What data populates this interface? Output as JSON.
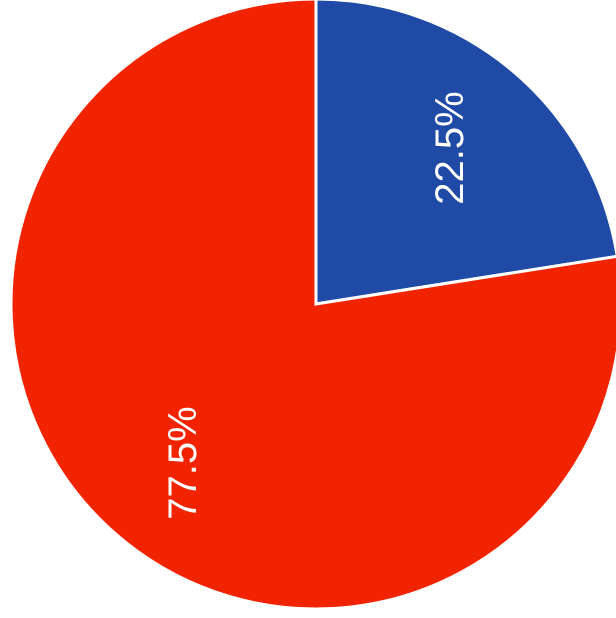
{
  "chart_data": {
    "type": "pie",
    "slices": [
      {
        "label": "22.5%",
        "value": 22.5,
        "color": "#1f4aa6"
      },
      {
        "label": "77.5%",
        "value": 77.5,
        "color": "#f22400"
      }
    ],
    "start_angle_deg": 0,
    "direction": "clockwise",
    "separator_color": "#ffffff",
    "title": "",
    "legend": "none",
    "label_style": "percent inside slices, rotated vertical"
  }
}
